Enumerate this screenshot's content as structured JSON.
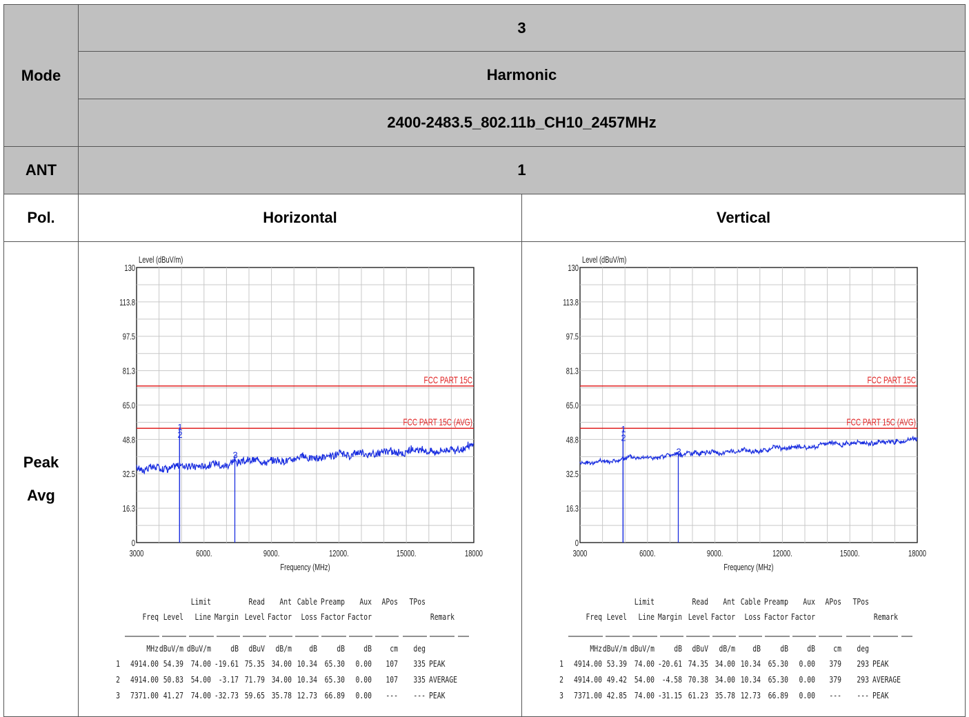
{
  "header": {
    "mode_label": "Mode",
    "mode_values": [
      "3",
      "Harmonic",
      "2400-2483.5_802.11b_CH10_2457MHz"
    ],
    "ant_label": "ANT",
    "ant_value": "1",
    "pol_label": "Pol.",
    "pol_h": "Horizontal",
    "pol_v": "Vertical",
    "row_label_1": "Peak",
    "row_label_2": "Avg"
  },
  "chart_data": [
    {
      "type": "line",
      "polarization": "Horizontal",
      "ylabel": "Level (dBuV/m)",
      "xlabel": "Frequency (MHz)",
      "ylim": [
        0,
        130
      ],
      "xlim": [
        3000,
        18000
      ],
      "yticks": [
        "130",
        "113.8",
        "97.5",
        "81.3",
        "65.0",
        "48.8",
        "32.5",
        "16.3",
        "0"
      ],
      "xticks": [
        "3000",
        "6000.",
        "9000.",
        "12000.",
        "15000.",
        "18000"
      ],
      "limit_lines": [
        {
          "name": "FCC PART 15C",
          "value": 74,
          "color": "#e02020"
        },
        {
          "name": "FCC PART 15C (AVG)",
          "value": 54,
          "color": "#e02020"
        }
      ],
      "trace": {
        "color": "#1a2ee0",
        "start": 35,
        "end": 45,
        "noise": 1.6
      },
      "markers": [
        {
          "label": "1",
          "freq": 4914,
          "level": 54.39
        },
        {
          "label": "2",
          "freq": 4914,
          "level": 50.83
        },
        {
          "label": "3",
          "freq": 7371,
          "level": 41.27
        }
      ],
      "table": {
        "head1": [
          "",
          "",
          "",
          "Limit",
          "",
          "Read",
          "Ant",
          "Cable",
          "Preamp",
          "Aux",
          "APos",
          "TPos",
          ""
        ],
        "head2": [
          "",
          "Freq",
          "Level",
          "Line",
          "Margin",
          "Level",
          "Factor",
          "Loss",
          "Factor",
          "Factor",
          "",
          "",
          "Remark"
        ],
        "units": [
          "",
          "MHz",
          "dBuV/m",
          "dBuV/m",
          "dB",
          "dBuV",
          "dB/m",
          "dB",
          "dB",
          "dB",
          "cm",
          "deg",
          ""
        ],
        "rows": [
          [
            "1",
            "4914.00",
            "54.39",
            "74.00",
            "-19.61",
            "75.35",
            "34.00",
            "10.34",
            "65.30",
            "0.00",
            "107",
            "335",
            "PEAK"
          ],
          [
            "2",
            "4914.00",
            "50.83",
            "54.00",
            "-3.17",
            "71.79",
            "34.00",
            "10.34",
            "65.30",
            "0.00",
            "107",
            "335",
            "AVERAGE"
          ],
          [
            "3",
            "7371.00",
            "41.27",
            "74.00",
            "-32.73",
            "59.65",
            "35.78",
            "12.73",
            "66.89",
            "0.00",
            "---",
            "---",
            "PEAK"
          ]
        ]
      }
    },
    {
      "type": "line",
      "polarization": "Vertical",
      "ylabel": "Level (dBuV/m)",
      "xlabel": "Frequency (MHz)",
      "ylim": [
        0,
        130
      ],
      "xlim": [
        3000,
        18000
      ],
      "yticks": [
        "130",
        "113.8",
        "97.5",
        "81.3",
        "65.0",
        "48.8",
        "32.5",
        "16.3",
        "0"
      ],
      "xticks": [
        "3000",
        "6000.",
        "9000.",
        "12000.",
        "15000.",
        "18000"
      ],
      "limit_lines": [
        {
          "name": "FCC PART 15C",
          "value": 74,
          "color": "#e02020"
        },
        {
          "name": "FCC PART 15C (AVG)",
          "value": 54,
          "color": "#e02020"
        }
      ],
      "trace": {
        "color": "#1a2ee0",
        "start": 38,
        "end": 49,
        "noise": 0.8
      },
      "markers": [
        {
          "label": "1",
          "freq": 4914,
          "level": 53.39
        },
        {
          "label": "2",
          "freq": 4914,
          "level": 49.42
        },
        {
          "label": "3",
          "freq": 7371,
          "level": 42.85
        }
      ],
      "table": {
        "head1": [
          "",
          "",
          "",
          "Limit",
          "",
          "Read",
          "Ant",
          "Cable",
          "Preamp",
          "Aux",
          "APos",
          "TPos",
          ""
        ],
        "head2": [
          "",
          "Freq",
          "Level",
          "Line",
          "Margin",
          "Level",
          "Factor",
          "Loss",
          "Factor",
          "Factor",
          "",
          "",
          "Remark"
        ],
        "units": [
          "",
          "MHz",
          "dBuV/m",
          "dBuV/m",
          "dB",
          "dBuV",
          "dB/m",
          "dB",
          "dB",
          "dB",
          "cm",
          "deg",
          ""
        ],
        "rows": [
          [
            "1",
            "4914.00",
            "53.39",
            "74.00",
            "-20.61",
            "74.35",
            "34.00",
            "10.34",
            "65.30",
            "0.00",
            "379",
            "293",
            "PEAK"
          ],
          [
            "2",
            "4914.00",
            "49.42",
            "54.00",
            "-4.58",
            "70.38",
            "34.00",
            "10.34",
            "65.30",
            "0.00",
            "379",
            "293",
            "AVERAGE"
          ],
          [
            "3",
            "7371.00",
            "42.85",
            "74.00",
            "-31.15",
            "61.23",
            "35.78",
            "12.73",
            "66.89",
            "0.00",
            "---",
            "---",
            "PEAK"
          ]
        ]
      }
    }
  ]
}
